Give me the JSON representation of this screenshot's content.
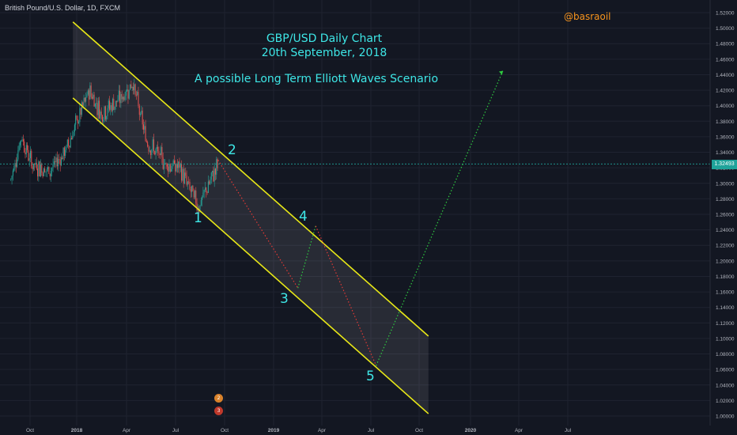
{
  "header": {
    "symbol": "British Pound/U.S. Dollar, 1D, FXCM",
    "author": "@basraoil"
  },
  "annotations": {
    "title_line1": "GBP/USD Daily Chart",
    "title_line2": "20th September, 2018",
    "scenario": "A possible Long Term Elliott Waves Scenario",
    "waves": [
      "1",
      "2",
      "3",
      "4",
      "5"
    ]
  },
  "price_tag": "1.32493",
  "events": [
    {
      "icon": "flag-icon",
      "badge": "2"
    },
    {
      "icon": "flag-icon",
      "badge": "3"
    }
  ],
  "colors": {
    "background": "#131722",
    "channel": "#e8e817",
    "annotation": "#3ee7e7",
    "author": "#f7941d",
    "up_candle": "#26a69a",
    "down_candle": "#ef5350",
    "projection_up": "#2ecc40",
    "projection_down": "#e53935",
    "price_line": "#1fa39a"
  },
  "chart_data": {
    "type": "candlestick",
    "symbol": "GBP/USD",
    "timeframe": "1D",
    "x_ticks": [
      "Oct",
      "2018",
      "Apr",
      "Jul",
      "Oct",
      "2019",
      "Apr",
      "Jul",
      "Oct",
      "2020",
      "Apr",
      "Jul"
    ],
    "y_ticks": [
      "1.52000",
      "1.50000",
      "1.48000",
      "1.46000",
      "1.44000",
      "1.42000",
      "1.40000",
      "1.38000",
      "1.36000",
      "1.34000",
      "1.32000",
      "1.30000",
      "1.28000",
      "1.26000",
      "1.24000",
      "1.22000",
      "1.20000",
      "1.18000",
      "1.16000",
      "1.14000",
      "1.12000",
      "1.10000",
      "1.08000",
      "1.06000",
      "1.04000",
      "1.02000",
      "1.00000"
    ],
    "ylim": [
      0.995,
      1.528
    ],
    "last_price": 1.32493,
    "price_path": [
      {
        "t": "2017-09-01",
        "p": 1.305
      },
      {
        "t": "2017-09-20",
        "p": 1.36
      },
      {
        "t": "2017-10-10",
        "p": 1.325
      },
      {
        "t": "2017-11-10",
        "p": 1.315
      },
      {
        "t": "2017-12-10",
        "p": 1.34
      },
      {
        "t": "2018-01-25",
        "p": 1.42
      },
      {
        "t": "2018-02-15",
        "p": 1.39
      },
      {
        "t": "2018-03-25",
        "p": 1.41
      },
      {
        "t": "2018-04-15",
        "p": 1.43
      },
      {
        "t": "2018-05-10",
        "p": 1.355
      },
      {
        "t": "2018-06-15",
        "p": 1.325
      },
      {
        "t": "2018-07-10",
        "p": 1.32
      },
      {
        "t": "2018-08-15",
        "p": 1.27
      },
      {
        "t": "2018-09-20",
        "p": 1.325
      }
    ],
    "channel": {
      "upper": [
        {
          "t": "2017-12-25",
          "p": 1.508
        },
        {
          "t": "2019-10-15",
          "p": 1.103
        }
      ],
      "lower": [
        {
          "t": "2017-12-25",
          "p": 1.41
        },
        {
          "t": "2019-10-15",
          "p": 1.003
        }
      ]
    },
    "projection": [
      {
        "label": "2",
        "t": "2018-09-20",
        "p": 1.33
      },
      {
        "label": "3",
        "t": "2019-02-15",
        "p": 1.165
      },
      {
        "label": "4",
        "t": "2019-03-20",
        "p": 1.245
      },
      {
        "label": "5",
        "t": "2019-07-10",
        "p": 1.065
      },
      {
        "label": "",
        "t": "2020-03-01",
        "p": 1.445
      }
    ],
    "wave_points": [
      {
        "label": "1",
        "t": "2018-08-15",
        "p": 1.268
      },
      {
        "label": "2",
        "t": "2018-09-20",
        "p": 1.33
      },
      {
        "label": "3",
        "t": "2019-02-15",
        "p": 1.165
      },
      {
        "label": "4",
        "t": "2019-03-20",
        "p": 1.245
      },
      {
        "label": "5",
        "t": "2019-07-10",
        "p": 1.065
      }
    ]
  }
}
